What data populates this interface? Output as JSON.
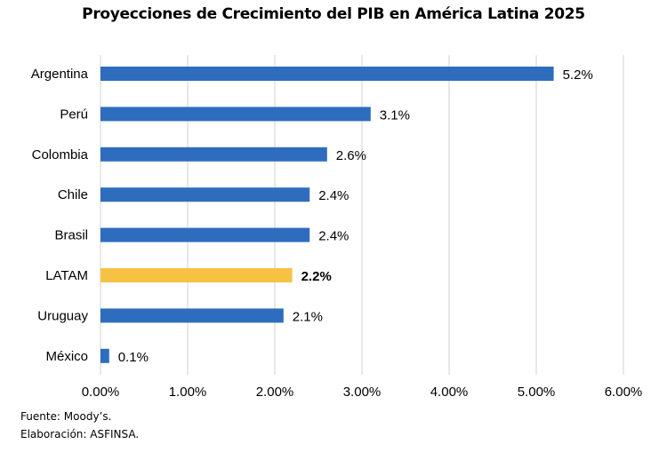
{
  "chart_data": {
    "type": "bar",
    "orientation": "horizontal",
    "title": "Proyecciones de Crecimiento del PIB en América Latina 2025",
    "categories": [
      "Argentina",
      "Perú",
      "Colombia",
      "Chile",
      "Brasil",
      "LATAM",
      "Uruguay",
      "México"
    ],
    "values": [
      5.2,
      3.1,
      2.6,
      2.4,
      2.4,
      2.2,
      2.1,
      0.1
    ],
    "data_labels": [
      "5.2%",
      "3.1%",
      "2.6%",
      "2.4%",
      "2.4%",
      "2.2%",
      "2.1%",
      "0.1%"
    ],
    "highlight": "LATAM",
    "colors": {
      "default": "#2E6DBE",
      "highlight": "#F6C244"
    },
    "xlim": [
      0,
      6
    ],
    "xticks": [
      "0.00%",
      "1.00%",
      "2.00%",
      "3.00%",
      "4.00%",
      "5.00%",
      "6.00%"
    ],
    "grid": true,
    "xlabel": "",
    "ylabel": ""
  },
  "footer": {
    "source": "Fuente: Moody’s.",
    "elaboration": "Elaboración: ASFINSA."
  }
}
